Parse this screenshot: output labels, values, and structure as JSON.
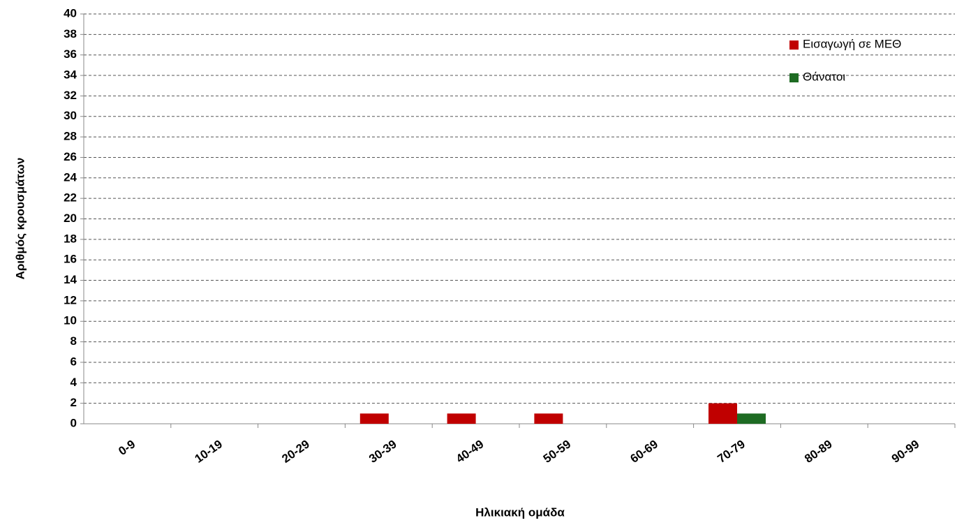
{
  "chart_data": {
    "type": "bar",
    "x_label": "Ηλικιακή ομάδα",
    "y_label": "Αριθμός κρουσμάτων",
    "categories": [
      "0-9",
      "10-19",
      "20-29",
      "30-39",
      "40-49",
      "50-59",
      "60-69",
      "70-79",
      "80-89",
      "90-99"
    ],
    "series": [
      {
        "name": "Εισαγωγή σε ΜΕΘ",
        "color": "#c00000",
        "values": [
          0,
          0,
          0,
          1,
          1,
          1,
          0,
          2,
          0,
          0
        ]
      },
      {
        "name": "Θάνατοι",
        "color": "#1e6b23",
        "values": [
          0,
          0,
          0,
          0,
          0,
          0,
          0,
          1,
          0,
          0
        ]
      }
    ],
    "ylim": [
      0,
      40
    ],
    "yticks": [
      0,
      2,
      4,
      6,
      8,
      10,
      12,
      14,
      16,
      18,
      20,
      22,
      24,
      26,
      28,
      30,
      32,
      34,
      36,
      38,
      40
    ],
    "grid": true,
    "legend": "top-right"
  }
}
